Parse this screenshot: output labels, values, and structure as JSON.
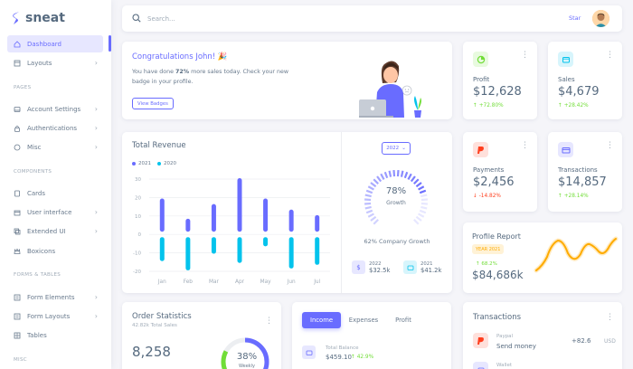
{
  "brand": {
    "name": "sneat"
  },
  "search": {
    "placeholder": "Search..."
  },
  "navbar": {
    "star_label": "Star"
  },
  "sidebar": {
    "items": [
      {
        "label": "Dashboard"
      },
      {
        "label": "Layouts"
      },
      {
        "label": "Account Settings"
      },
      {
        "label": "Authentications"
      },
      {
        "label": "Misc"
      },
      {
        "label": "Cards"
      },
      {
        "label": "User interface"
      },
      {
        "label": "Extended UI"
      },
      {
        "label": "Boxicons"
      },
      {
        "label": "Form Elements"
      },
      {
        "label": "Form Layouts"
      },
      {
        "label": "Tables"
      }
    ],
    "headers": [
      "PAGES",
      "COMPONENTS",
      "FORMS & TABLES",
      "MISC"
    ]
  },
  "congrats": {
    "title": "Congratulations John! 🎉",
    "text_before": "You have done ",
    "highlight": "72%",
    "text_after": " more sales today. Check your new badge in your profile.",
    "button": "View Badges"
  },
  "stats": {
    "profit": {
      "label": "Profit",
      "value": "$12,628",
      "change": "+72.80%",
      "direction": "up",
      "icon": "chart-icon"
    },
    "sales": {
      "label": "Sales",
      "value": "$4,679",
      "change": "+28.42%",
      "direction": "up",
      "icon": "wallet-icon"
    },
    "payments": {
      "label": "Payments",
      "value": "$2,456",
      "change": "-14.82%",
      "direction": "down",
      "icon": "paypal-icon"
    },
    "transactions": {
      "label": "Transactions",
      "value": "$14,857",
      "change": "+28.14%",
      "direction": "up",
      "icon": "card-icon"
    }
  },
  "revenue": {
    "title": "Total Revenue",
    "year_select": "2022",
    "growth_percent": "78%",
    "growth_label": "Growth",
    "company_growth": "62% Company Growth",
    "mini": [
      {
        "year": "2022",
        "value": "$32.5k",
        "icon": "dollar-icon"
      },
      {
        "year": "2021",
        "value": "$41.2k",
        "icon": "wallet-icon"
      }
    ]
  },
  "chart_data": {
    "type": "bar",
    "categories": [
      "Jan",
      "Feb",
      "Mar",
      "Apr",
      "May",
      "Jun",
      "Jul"
    ],
    "series": [
      {
        "name": "2021",
        "values": [
          18,
          7,
          15,
          29,
          18,
          12,
          9
        ],
        "color": "#696cff"
      },
      {
        "name": "2020",
        "values": [
          -13,
          -18,
          -9,
          -14,
          -5,
          -17,
          -15
        ],
        "color": "#03c3ec"
      }
    ],
    "yticks": [
      "30",
      "20",
      "10",
      "0",
      "-10",
      "-20"
    ],
    "ylim": [
      -20,
      30
    ],
    "grid": true,
    "legend": "top-left"
  },
  "profile_report": {
    "title": "Profile Report",
    "badge": "YEAR 2021",
    "change": "68.2%",
    "value": "$84,686k"
  },
  "order_stats": {
    "title": "Order Statistics",
    "subtitle": "42.82k Total Sales",
    "value": "8,258",
    "percent": "38%",
    "weekly": "Weekly"
  },
  "income": {
    "tabs": [
      "Income",
      "Expenses",
      "Profit"
    ],
    "total_label": "Total Balance",
    "total_value": "$459.10",
    "change": "42.9%"
  },
  "transactions": {
    "title": "Transactions",
    "items": [
      {
        "name": "Paypal",
        "desc": "Send money",
        "amount": "+82.6",
        "currency": "USD"
      },
      {
        "name": "Wallet",
        "desc": "",
        "amount": "",
        "currency": ""
      }
    ]
  },
  "colors": {
    "primary": "#696cff",
    "info": "#03c3ec",
    "success": "#71dd37",
    "danger": "#ff3e1d",
    "warning": "#ffab00"
  }
}
